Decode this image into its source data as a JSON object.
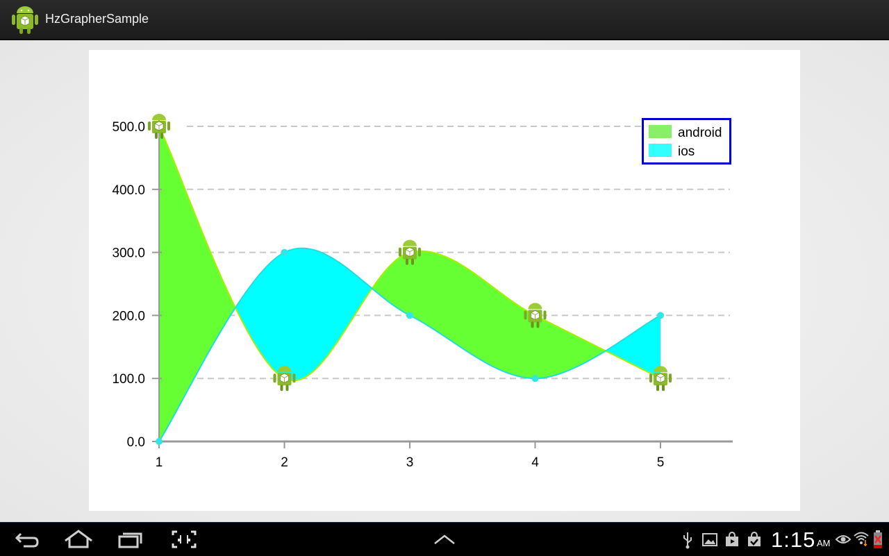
{
  "app": {
    "title": "HzGrapherSample"
  },
  "chart_data": {
    "type": "area",
    "x": [
      1,
      2,
      3,
      4,
      5
    ],
    "series": [
      {
        "name": "android",
        "values": [
          500,
          100,
          300,
          200,
          100
        ],
        "color": "#66ff33",
        "marker": "android-icon"
      },
      {
        "name": "ios",
        "values": [
          0,
          300,
          200,
          100,
          200
        ],
        "color": "#00ffff",
        "marker": "dot"
      }
    ],
    "yticks": [
      "0.0",
      "100.0",
      "200.0",
      "300.0",
      "400.0",
      "500.0"
    ],
    "xticks": [
      "1",
      "2",
      "3",
      "4",
      "5"
    ],
    "ylim": [
      0,
      500
    ],
    "grid": true,
    "legend_position": "top-right",
    "legend_border_color": "#0000cc"
  },
  "system_bar": {
    "time": "1:15",
    "ampm": "AM",
    "nav_buttons": [
      "back-icon",
      "home-icon",
      "recent-apps-icon",
      "screenshot-icon",
      "chevron-up-icon"
    ],
    "status_icons": [
      "usb-icon",
      "gallery-icon",
      "play-store-icon",
      "download-done-icon",
      "eye-icon",
      "wifi-icon",
      "battery-icon"
    ]
  }
}
